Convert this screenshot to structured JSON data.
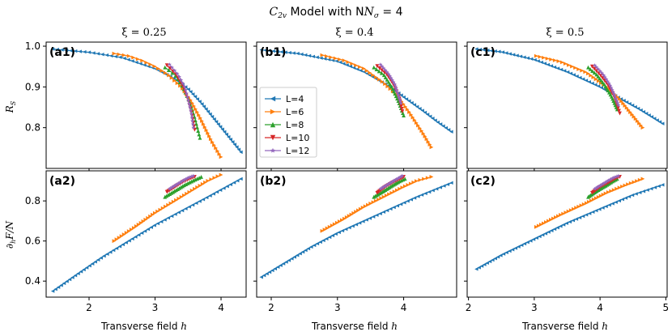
{
  "figure": {
    "title": "C",
    "title_sub": "2v",
    "title_mid": " Model with N",
    "title_sub2": "σ",
    "title_end": " = 4"
  },
  "columns": [
    {
      "xi_label": "ξ = 0.25"
    },
    {
      "xi_label": "ξ = 0.4"
    },
    {
      "xi_label": "ξ = 0.5"
    }
  ],
  "ylabels": {
    "top": "R",
    "top_sub": "S",
    "bottom": "∂",
    "bottom_sub": "h",
    "bottom_rest": "F/N"
  },
  "xlabel": {
    "text": "Transverse field ",
    "var": "h"
  },
  "legend": {
    "entries": [
      {
        "label": "L=4",
        "color": "#1f77b4",
        "marker": "tri-left"
      },
      {
        "label": "L=6",
        "color": "#ff7f0e",
        "marker": "tri-right"
      },
      {
        "label": "L=8",
        "color": "#2ca02c",
        "marker": "tri-up"
      },
      {
        "label": "L=10",
        "color": "#d62728",
        "marker": "tri-down"
      },
      {
        "label": "L=12",
        "color": "#9467bd",
        "marker": "star"
      }
    ]
  },
  "chart_data": [
    {
      "id": "a1",
      "label": "(a1)",
      "type": "scatter",
      "xlim": [
        1.35,
        4.38
      ],
      "ylim": [
        0.7,
        1.01
      ],
      "xticks": [
        2,
        3,
        4
      ],
      "xtick_labels": false,
      "yticks": [
        0.8,
        0.9,
        1.0
      ],
      "ytick_labels": [
        "0.8",
        "0.9",
        "1.0"
      ],
      "series": [
        {
          "name": "L=4",
          "points": [
            [
              1.45,
              0.993
            ],
            [
              2.0,
              0.985
            ],
            [
              2.5,
              0.972
            ],
            [
              3.0,
              0.945
            ],
            [
              3.3,
              0.92
            ],
            [
              3.5,
              0.895
            ],
            [
              3.7,
              0.86
            ],
            [
              3.9,
              0.82
            ],
            [
              4.1,
              0.78
            ],
            [
              4.3,
              0.74
            ]
          ]
        },
        {
          "name": "L=6",
          "points": [
            [
              2.38,
              0.982
            ],
            [
              2.6,
              0.976
            ],
            [
              2.8,
              0.965
            ],
            [
              3.0,
              0.95
            ],
            [
              3.2,
              0.93
            ],
            [
              3.4,
              0.9
            ],
            [
              3.55,
              0.865
            ],
            [
              3.7,
              0.82
            ],
            [
              3.85,
              0.77
            ],
            [
              4.0,
              0.728
            ]
          ]
        },
        {
          "name": "L=8",
          "points": [
            [
              3.15,
              0.948
            ],
            [
              3.3,
              0.93
            ],
            [
              3.42,
              0.9
            ],
            [
              3.52,
              0.865
            ],
            [
              3.6,
              0.825
            ],
            [
              3.68,
              0.775
            ]
          ]
        },
        {
          "name": "L=10",
          "points": [
            [
              3.18,
              0.953
            ],
            [
              3.32,
              0.93
            ],
            [
              3.43,
              0.9
            ],
            [
              3.5,
              0.87
            ],
            [
              3.56,
              0.83
            ],
            [
              3.6,
              0.795
            ]
          ]
        },
        {
          "name": "L=12",
          "points": [
            [
              3.22,
              0.955
            ],
            [
              3.35,
              0.93
            ],
            [
              3.45,
              0.9
            ],
            [
              3.5,
              0.87
            ],
            [
              3.55,
              0.835
            ],
            [
              3.58,
              0.8
            ]
          ]
        }
      ]
    },
    {
      "id": "b1",
      "label": "(b1)",
      "type": "scatter",
      "xlim": [
        1.78,
        4.8
      ],
      "ylim": [
        0.7,
        1.01
      ],
      "xticks": [
        2,
        3,
        4
      ],
      "xtick_labels": false,
      "yticks": [
        0.8,
        0.9,
        1.0
      ],
      "ytick_labels": [],
      "series": [
        {
          "name": "L=4",
          "points": [
            [
              1.85,
              0.991
            ],
            [
              2.4,
              0.982
            ],
            [
              3.0,
              0.963
            ],
            [
              3.4,
              0.937
            ],
            [
              3.8,
              0.9
            ],
            [
              4.0,
              0.875
            ],
            [
              4.3,
              0.84
            ],
            [
              4.5,
              0.815
            ],
            [
              4.72,
              0.79
            ]
          ]
        },
        {
          "name": "L=6",
          "points": [
            [
              2.77,
              0.978
            ],
            [
              3.1,
              0.965
            ],
            [
              3.4,
              0.945
            ],
            [
              3.7,
              0.91
            ],
            [
              3.9,
              0.88
            ],
            [
              4.1,
              0.835
            ],
            [
              4.3,
              0.785
            ],
            [
              4.42,
              0.752
            ]
          ]
        },
        {
          "name": "L=8",
          "points": [
            [
              3.55,
              0.948
            ],
            [
              3.7,
              0.93
            ],
            [
              3.82,
              0.9
            ],
            [
              3.92,
              0.865
            ],
            [
              4.0,
              0.83
            ]
          ]
        },
        {
          "name": "L=10",
          "points": [
            [
              3.6,
              0.951
            ],
            [
              3.75,
              0.93
            ],
            [
              3.85,
              0.905
            ],
            [
              3.93,
              0.875
            ],
            [
              3.98,
              0.84
            ]
          ]
        },
        {
          "name": "L=12",
          "points": [
            [
              3.65,
              0.955
            ],
            [
              3.78,
              0.93
            ],
            [
              3.87,
              0.905
            ],
            [
              3.92,
              0.88
            ],
            [
              3.96,
              0.86
            ]
          ]
        }
      ]
    },
    {
      "id": "c1",
      "label": "(c1)",
      "type": "scatter",
      "xlim": [
        1.98,
        5.02
      ],
      "ylim": [
        0.7,
        1.01
      ],
      "xticks": [
        2,
        3,
        4,
        5
      ],
      "xtick_labels": false,
      "yticks": [
        0.8,
        0.9,
        1.0
      ],
      "ytick_labels": [],
      "series": [
        {
          "name": "L=4",
          "points": [
            [
              2.12,
              0.993
            ],
            [
              2.5,
              0.986
            ],
            [
              3.0,
              0.967
            ],
            [
              3.5,
              0.937
            ],
            [
              4.0,
              0.9
            ],
            [
              4.3,
              0.872
            ],
            [
              4.6,
              0.845
            ],
            [
              4.95,
              0.81
            ]
          ]
        },
        {
          "name": "L=6",
          "points": [
            [
              3.03,
              0.976
            ],
            [
              3.4,
              0.962
            ],
            [
              3.8,
              0.935
            ],
            [
              4.1,
              0.9
            ],
            [
              4.3,
              0.87
            ],
            [
              4.5,
              0.83
            ],
            [
              4.65,
              0.8
            ]
          ]
        },
        {
          "name": "L=8",
          "points": [
            [
              3.82,
              0.948
            ],
            [
              3.95,
              0.93
            ],
            [
              4.07,
              0.905
            ],
            [
              4.18,
              0.875
            ],
            [
              4.26,
              0.845
            ]
          ]
        },
        {
          "name": "L=10",
          "points": [
            [
              3.88,
              0.95
            ],
            [
              4.0,
              0.93
            ],
            [
              4.12,
              0.905
            ],
            [
              4.22,
              0.875
            ],
            [
              4.3,
              0.835
            ]
          ]
        },
        {
          "name": "L=12",
          "points": [
            [
              3.92,
              0.953
            ],
            [
              4.05,
              0.93
            ],
            [
              4.15,
              0.905
            ],
            [
              4.22,
              0.88
            ],
            [
              4.28,
              0.855
            ]
          ]
        }
      ]
    },
    {
      "id": "a2",
      "label": "(a2)",
      "type": "scatter",
      "xlim": [
        1.35,
        4.38
      ],
      "ylim": [
        0.32,
        0.95
      ],
      "xticks": [
        2,
        3,
        4
      ],
      "xtick_labels": [
        "2",
        "3",
        "4"
      ],
      "yticks": [
        0.4,
        0.6,
        0.8
      ],
      "ytick_labels": [
        "0.4",
        "0.6",
        "0.8"
      ],
      "series": [
        {
          "name": "L=4",
          "points": [
            [
              1.45,
              0.35
            ],
            [
              1.8,
              0.43
            ],
            [
              2.2,
              0.52
            ],
            [
              2.6,
              0.6
            ],
            [
              3.0,
              0.68
            ],
            [
              3.4,
              0.75
            ],
            [
              3.8,
              0.82
            ],
            [
              4.3,
              0.91
            ]
          ]
        },
        {
          "name": "L=6",
          "points": [
            [
              2.38,
              0.6
            ],
            [
              2.7,
              0.67
            ],
            [
              3.0,
              0.74
            ],
            [
              3.3,
              0.8
            ],
            [
              3.6,
              0.86
            ],
            [
              3.8,
              0.9
            ],
            [
              4.0,
              0.93
            ]
          ]
        },
        {
          "name": "L=8",
          "points": [
            [
              3.15,
              0.82
            ],
            [
              3.3,
              0.85
            ],
            [
              3.45,
              0.88
            ],
            [
              3.6,
              0.905
            ],
            [
              3.7,
              0.92
            ]
          ]
        },
        {
          "name": "L=10",
          "points": [
            [
              3.18,
              0.845
            ],
            [
              3.3,
              0.87
            ],
            [
              3.42,
              0.895
            ],
            [
              3.52,
              0.91
            ],
            [
              3.6,
              0.92
            ]
          ]
        },
        {
          "name": "L=12",
          "points": [
            [
              3.22,
              0.86
            ],
            [
              3.32,
              0.88
            ],
            [
              3.42,
              0.9
            ],
            [
              3.5,
              0.915
            ],
            [
              3.58,
              0.925
            ]
          ]
        }
      ]
    },
    {
      "id": "b2",
      "label": "(b2)",
      "type": "scatter",
      "xlim": [
        1.78,
        4.8
      ],
      "ylim": [
        0.32,
        0.95
      ],
      "xticks": [
        2,
        3,
        4
      ],
      "xtick_labels": [
        "2",
        "3",
        "4"
      ],
      "yticks": [
        0.4,
        0.6,
        0.8
      ],
      "ytick_labels": [],
      "series": [
        {
          "name": "L=4",
          "points": [
            [
              1.85,
              0.42
            ],
            [
              2.2,
              0.49
            ],
            [
              2.6,
              0.57
            ],
            [
              3.0,
              0.64
            ],
            [
              3.4,
              0.7
            ],
            [
              3.8,
              0.76
            ],
            [
              4.2,
              0.82
            ],
            [
              4.72,
              0.89
            ]
          ]
        },
        {
          "name": "L=6",
          "points": [
            [
              2.77,
              0.65
            ],
            [
              3.1,
              0.71
            ],
            [
              3.4,
              0.77
            ],
            [
              3.7,
              0.82
            ],
            [
              4.0,
              0.87
            ],
            [
              4.2,
              0.9
            ],
            [
              4.42,
              0.92
            ]
          ]
        },
        {
          "name": "L=8",
          "points": [
            [
              3.55,
              0.82
            ],
            [
              3.7,
              0.85
            ],
            [
              3.82,
              0.875
            ],
            [
              3.95,
              0.9
            ],
            [
              4.02,
              0.91
            ]
          ]
        },
        {
          "name": "L=10",
          "points": [
            [
              3.6,
              0.84
            ],
            [
              3.72,
              0.87
            ],
            [
              3.85,
              0.895
            ],
            [
              3.95,
              0.91
            ],
            [
              4.0,
              0.92
            ]
          ]
        },
        {
          "name": "L=12",
          "points": [
            [
              3.65,
              0.86
            ],
            [
              3.75,
              0.88
            ],
            [
              3.85,
              0.9
            ],
            [
              3.93,
              0.915
            ],
            [
              3.98,
              0.925
            ]
          ]
        }
      ]
    },
    {
      "id": "c2",
      "label": "(c2)",
      "type": "scatter",
      "xlim": [
        1.98,
        5.02
      ],
      "ylim": [
        0.32,
        0.95
      ],
      "xticks": [
        2,
        3,
        4,
        5
      ],
      "xtick_labels": [
        "2",
        "3",
        "4",
        "5"
      ],
      "yticks": [
        0.4,
        0.6,
        0.8
      ],
      "ytick_labels": [],
      "series": [
        {
          "name": "L=4",
          "points": [
            [
              2.12,
              0.46
            ],
            [
              2.5,
              0.53
            ],
            [
              3.0,
              0.61
            ],
            [
              3.5,
              0.69
            ],
            [
              4.0,
              0.76
            ],
            [
              4.5,
              0.83
            ],
            [
              4.95,
              0.88
            ]
          ]
        },
        {
          "name": "L=6",
          "points": [
            [
              3.03,
              0.67
            ],
            [
              3.4,
              0.73
            ],
            [
              3.8,
              0.79
            ],
            [
              4.1,
              0.84
            ],
            [
              4.4,
              0.88
            ],
            [
              4.65,
              0.91
            ]
          ]
        },
        {
          "name": "L=8",
          "points": [
            [
              3.82,
              0.82
            ],
            [
              3.95,
              0.85
            ],
            [
              4.08,
              0.875
            ],
            [
              4.2,
              0.9
            ],
            [
              4.26,
              0.91
            ]
          ]
        },
        {
          "name": "L=10",
          "points": [
            [
              3.88,
              0.84
            ],
            [
              4.0,
              0.87
            ],
            [
              4.12,
              0.89
            ],
            [
              4.22,
              0.91
            ],
            [
              4.3,
              0.92
            ]
          ]
        },
        {
          "name": "L=12",
          "points": [
            [
              3.92,
              0.86
            ],
            [
              4.02,
              0.88
            ],
            [
              4.12,
              0.9
            ],
            [
              4.2,
              0.915
            ],
            [
              4.28,
              0.925
            ]
          ]
        }
      ]
    }
  ]
}
